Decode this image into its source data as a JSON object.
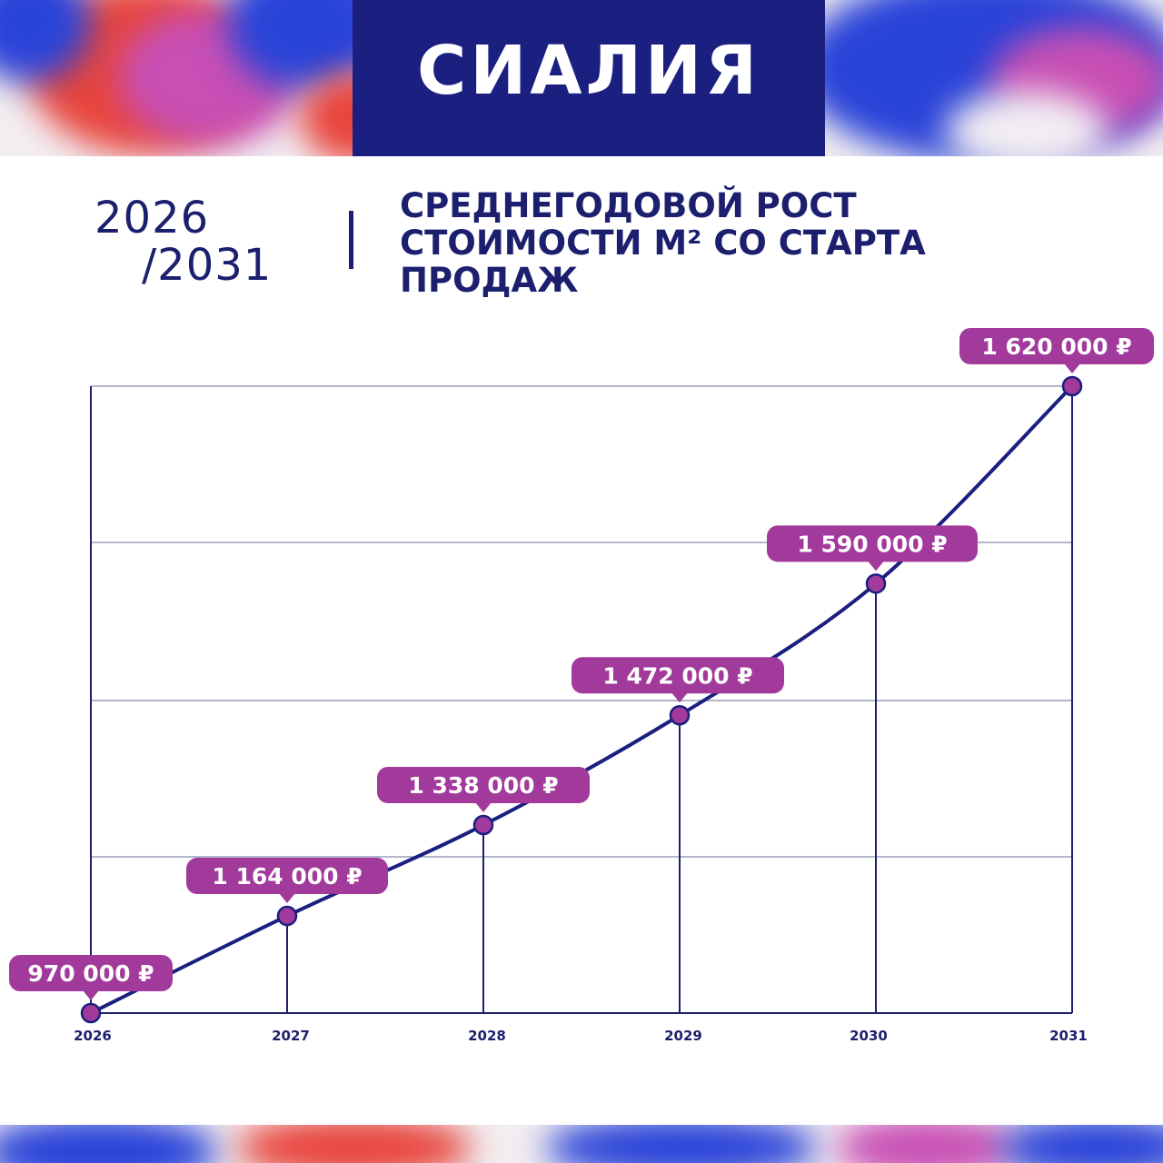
{
  "brand": {
    "logo_text": "СИАЛИЯ"
  },
  "heading": {
    "years_line1": "2026",
    "years_line2": "/2031",
    "title_line1": "СРЕДНЕГОДОВОЙ РОСТ",
    "title_line2": "СТОИМОСТИ М² СО СТАРТА",
    "title_line3": "ПРОДАЖ"
  },
  "colors": {
    "navy": "#1b1f80",
    "text_navy": "#1b1f6e",
    "accent_magenta": "#a23a9b",
    "grid": "#9a9fb8",
    "splash_red": "#e8443c",
    "splash_blue": "#2a43d8",
    "splash_pink": "#c84fb4"
  },
  "chart_data": {
    "type": "line",
    "title": "",
    "xlabel": "",
    "ylabel": "",
    "x": [
      "2026",
      "2027",
      "2028",
      "2029",
      "2030",
      "2031"
    ],
    "series": [
      {
        "values": [
          970000,
          1164000,
          1338000,
          1472000,
          1590000,
          1620000
        ]
      }
    ],
    "data_labels": [
      "970 000 ₽",
      "1 164 000 ₽",
      "1 338 000 ₽",
      "1 472 000 ₽",
      "1 590 000 ₽",
      "1 620 000 ₽"
    ],
    "grid": true,
    "legend": "none"
  }
}
